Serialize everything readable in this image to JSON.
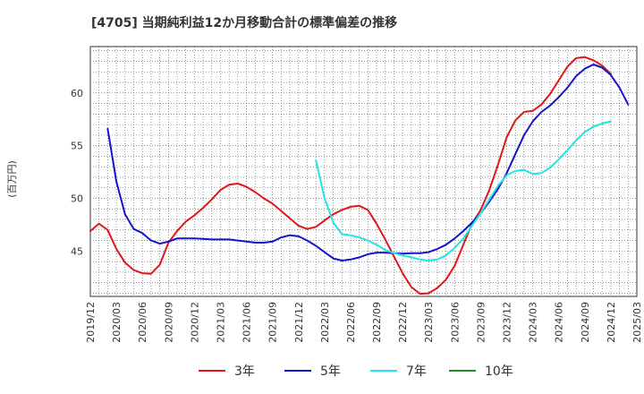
{
  "chart_data": {
    "type": "line",
    "title": "[4705]  当期純利益12か月移動合計の標準偏差の推移",
    "ylabel": "(百万円)",
    "xlabel": "",
    "x_tick_labels": [
      "2019/12",
      "2020/03",
      "2020/06",
      "2020/09",
      "2020/12",
      "2021/03",
      "2021/06",
      "2021/09",
      "2021/12",
      "2022/03",
      "2022/06",
      "2022/09",
      "2022/12",
      "2023/03",
      "2023/06",
      "2023/09",
      "2023/12",
      "2024/03",
      "2024/06",
      "2024/09",
      "2024/12",
      "2025/03"
    ],
    "y_ticks": [
      45,
      50,
      55,
      60
    ],
    "xlim": [
      "2019/12",
      "2025/03"
    ],
    "ylim": [
      40.7,
      64.4
    ],
    "grid": true,
    "legend_position": "bottom",
    "series": [
      {
        "name": "3年",
        "color": "#e0161a",
        "start": "2019/12",
        "values": [
          46.9,
          47.6,
          47.0,
          45.2,
          43.9,
          43.2,
          42.9,
          42.85,
          43.7,
          45.8,
          46.9,
          47.8,
          48.4,
          49.1,
          49.9,
          50.8,
          51.3,
          51.4,
          51.1,
          50.6,
          50.0,
          49.5,
          48.8,
          48.1,
          47.4,
          47.1,
          47.3,
          47.9,
          48.5,
          48.9,
          49.2,
          49.3,
          48.9,
          47.6,
          46.1,
          44.5,
          42.9,
          41.6,
          40.95,
          41.0,
          41.5,
          42.3,
          43.6,
          45.6,
          47.6,
          48.9,
          50.8,
          53.2,
          55.8,
          57.4,
          58.2,
          58.3,
          58.9,
          59.9,
          61.2,
          62.5,
          63.3,
          63.4,
          63.1,
          62.6,
          61.8
        ]
      },
      {
        "name": "5年",
        "color": "#1414c8",
        "start": "2020/02",
        "values": [
          56.6,
          51.6,
          48.5,
          47.1,
          46.7,
          46.0,
          45.7,
          45.9,
          46.2,
          46.2,
          46.2,
          46.15,
          46.1,
          46.1,
          46.1,
          46.0,
          45.9,
          45.8,
          45.8,
          45.9,
          46.3,
          46.5,
          46.4,
          46.0,
          45.5,
          44.9,
          44.3,
          44.1,
          44.2,
          44.4,
          44.7,
          44.85,
          44.85,
          44.8,
          44.75,
          44.8,
          44.8,
          44.9,
          45.2,
          45.6,
          46.2,
          46.9,
          47.7,
          48.6,
          49.7,
          50.9,
          52.4,
          54.2,
          56.0,
          57.3,
          58.2,
          58.8,
          59.6,
          60.5,
          61.6,
          62.3,
          62.7,
          62.4,
          61.7,
          60.5,
          58.9
        ]
      },
      {
        "name": "7年",
        "color": "#22e5e5",
        "start": "2022/02",
        "values": [
          53.6,
          50.0,
          47.7,
          46.6,
          46.5,
          46.3,
          46.0,
          45.6,
          45.1,
          44.8,
          44.6,
          44.4,
          44.2,
          44.1,
          44.2,
          44.6,
          45.3,
          46.2,
          47.4,
          48.6,
          49.9,
          51.2,
          52.2,
          52.6,
          52.7,
          52.3,
          52.4,
          52.9,
          53.7,
          54.6,
          55.5,
          56.3,
          56.8,
          57.1,
          57.3
        ]
      },
      {
        "name": "10年",
        "color": "#2a8a2a",
        "start": "",
        "values": []
      }
    ]
  }
}
